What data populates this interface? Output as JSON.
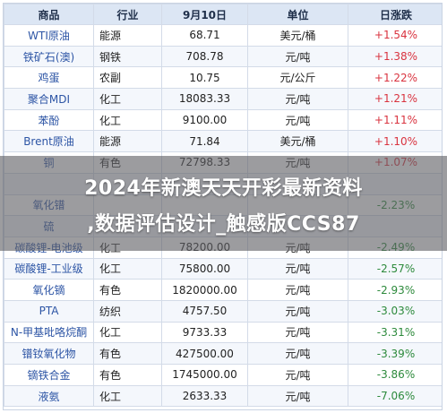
{
  "table": {
    "headers": [
      "商品",
      "行业",
      "9月10日",
      "单位",
      "日涨跌"
    ],
    "rows": [
      [
        "WTI原油",
        "能源",
        "68.71",
        "美元/桶",
        "+1.54%"
      ],
      [
        "铁矿石(澳)",
        "钢铁",
        "708.78",
        "元/吨",
        "+1.38%"
      ],
      [
        "鸡蛋",
        "农副",
        "10.75",
        "元/公斤",
        "+1.22%"
      ],
      [
        "聚合MDI",
        "化工",
        "18083.33",
        "元/吨",
        "+1.21%"
      ],
      [
        "苯酚",
        "化工",
        "9100.00",
        "元/吨",
        "+1.11%"
      ],
      [
        "Brent原油",
        "能源",
        "71.84",
        "美元/桶",
        "+1.10%"
      ],
      [
        "铜",
        "有色",
        "72798.33",
        "元/吨",
        "+1.07%"
      ],
      [
        "",
        "",
        "",
        "",
        ""
      ],
      [
        "氧化镨",
        "",
        "",
        "",
        "-2.23%"
      ],
      [
        "硫",
        "",
        "",
        "",
        ""
      ],
      [
        "碳酸锂-电池级",
        "化工",
        "78200.00",
        "元/吨",
        "-2.49%"
      ],
      [
        "碳酸锂-工业级",
        "化工",
        "75800.00",
        "元/吨",
        "-2.57%"
      ],
      [
        "氧化镝",
        "有色",
        "1820000.00",
        "元/吨",
        "-2.93%"
      ],
      [
        "PTA",
        "纺织",
        "4757.50",
        "元/吨",
        "-3.03%"
      ],
      [
        "N-甲基吡咯烷酮",
        "化工",
        "9733.33",
        "元/吨",
        "-3.31%"
      ],
      [
        "镨钕氧化物",
        "有色",
        "427500.00",
        "元/吨",
        "-3.39%"
      ],
      [
        "镝铁合金",
        "有色",
        "1745000.00",
        "元/吨",
        "-3.86%"
      ],
      [
        "液氨",
        "化工",
        "2633.33",
        "元/吨",
        "-7.06%"
      ]
    ]
  },
  "banner": {
    "line1": "2024年新澳天天开彩最新资料",
    "line2": ",数据评估设计_触感版CCS87"
  }
}
